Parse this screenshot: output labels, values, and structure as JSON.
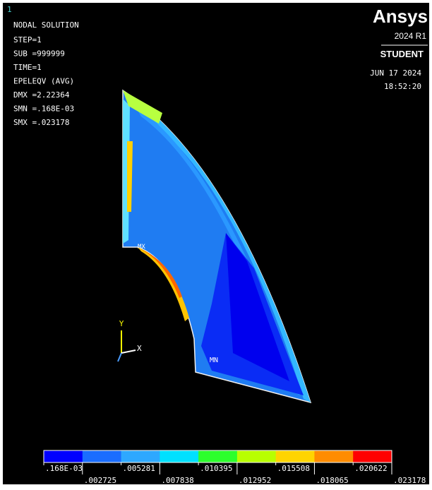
{
  "window_number": "1",
  "info": [
    "NODAL SOLUTION",
    "STEP=1",
    "SUB =999999",
    "TIME=1",
    "EPELEQV  (AVG)",
    "DMX =2.22364",
    "SMN =.168E-03",
    "SMX =.023178"
  ],
  "brand": {
    "name": "Ansys",
    "version": "2024 R1",
    "edition": "STUDENT"
  },
  "date": "JUN 17 2024",
  "time": "18:52:20",
  "markers": {
    "max": "MX",
    "min": "MN"
  },
  "triad": {
    "y": "Y",
    "x": "X"
  },
  "legend": {
    "colors": [
      "#0000ff",
      "#1a6dff",
      "#2ea8ff",
      "#00e0ff",
      "#00ffc0",
      "#2cff2c",
      "#b8ff00",
      "#ffd400",
      "#ff8c00",
      "#ff0000"
    ],
    "labels": [
      ".168E-03",
      ".002725",
      ".005281",
      ".007838",
      ".010395",
      ".012952",
      ".015508",
      ".018065",
      ".020622",
      ".023178"
    ]
  }
}
